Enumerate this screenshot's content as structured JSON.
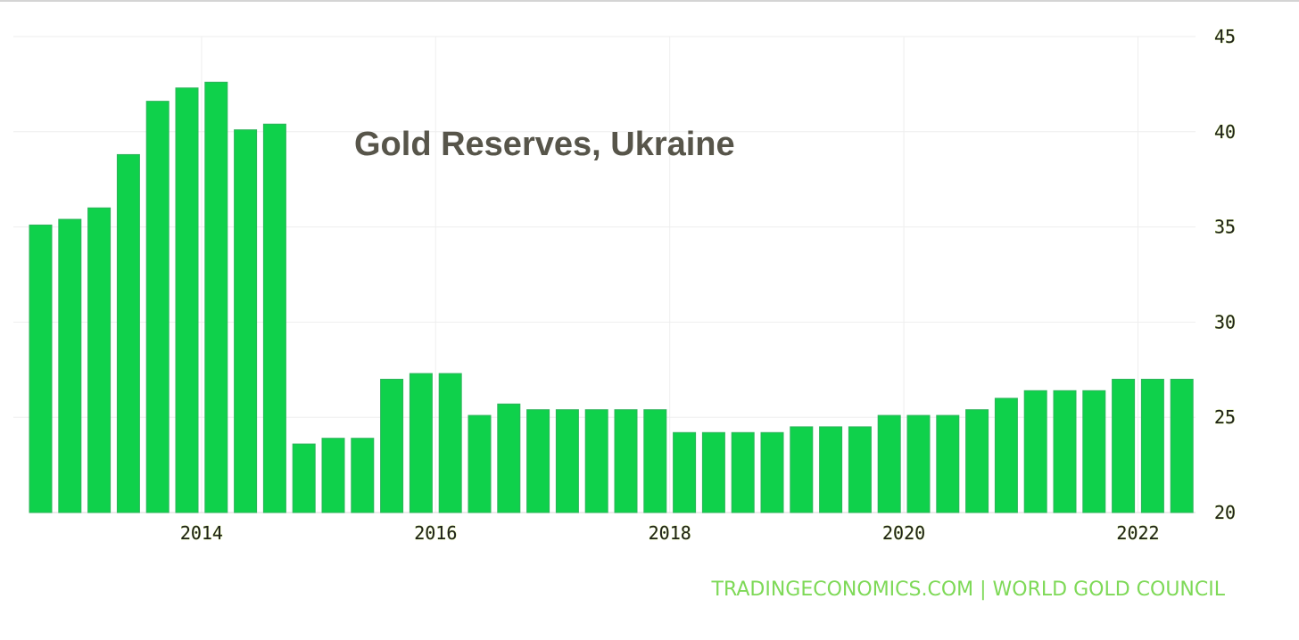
{
  "chart_data": {
    "type": "bar",
    "title": "Gold Reserves, Ukraine",
    "source": "TRADINGECONOMICS.COM | WORLD GOLD COUNCIL",
    "x_tick_labels": [
      "2014",
      "2016",
      "2018",
      "2020",
      "2022"
    ],
    "y_tick_labels": [
      "20",
      "25",
      "30",
      "35",
      "40",
      "45"
    ],
    "ylim": [
      20,
      45
    ],
    "y_axis_side": "right",
    "grid": true,
    "bar_color": "#0fd14b",
    "categories": [
      "2012 Q4",
      "2013 Q1",
      "2013 Q2",
      "2013 Q3",
      "2013 Q4",
      "2014 Q1",
      "2014 Q2",
      "2014 Q3",
      "2014 Q4",
      "2015 Q1",
      "2015 Q2",
      "2015 Q3",
      "2015 Q4",
      "2016 Q1",
      "2016 Q2",
      "2016 Q3",
      "2016 Q4",
      "2017 Q1",
      "2017 Q2",
      "2017 Q3",
      "2017 Q4",
      "2018 Q1",
      "2018 Q2",
      "2018 Q3",
      "2018 Q4",
      "2019 Q1",
      "2019 Q2",
      "2019 Q3",
      "2019 Q4",
      "2020 Q1",
      "2020 Q2",
      "2020 Q3",
      "2020 Q4",
      "2021 Q1",
      "2021 Q2",
      "2021 Q3",
      "2021 Q4",
      "2022 Q1",
      "2022 Q2",
      "2022 Q3"
    ],
    "values": [
      35.1,
      35.4,
      36.0,
      38.8,
      41.6,
      42.3,
      42.6,
      40.1,
      40.4,
      23.6,
      23.9,
      23.9,
      27.0,
      27.3,
      27.3,
      25.1,
      25.7,
      25.4,
      25.4,
      25.4,
      25.4,
      25.4,
      24.2,
      24.2,
      24.2,
      24.2,
      24.5,
      24.5,
      24.5,
      25.1,
      25.1,
      25.1,
      25.4,
      26.0,
      26.4,
      26.4,
      26.4,
      27.0,
      27.0,
      27.0
    ]
  }
}
